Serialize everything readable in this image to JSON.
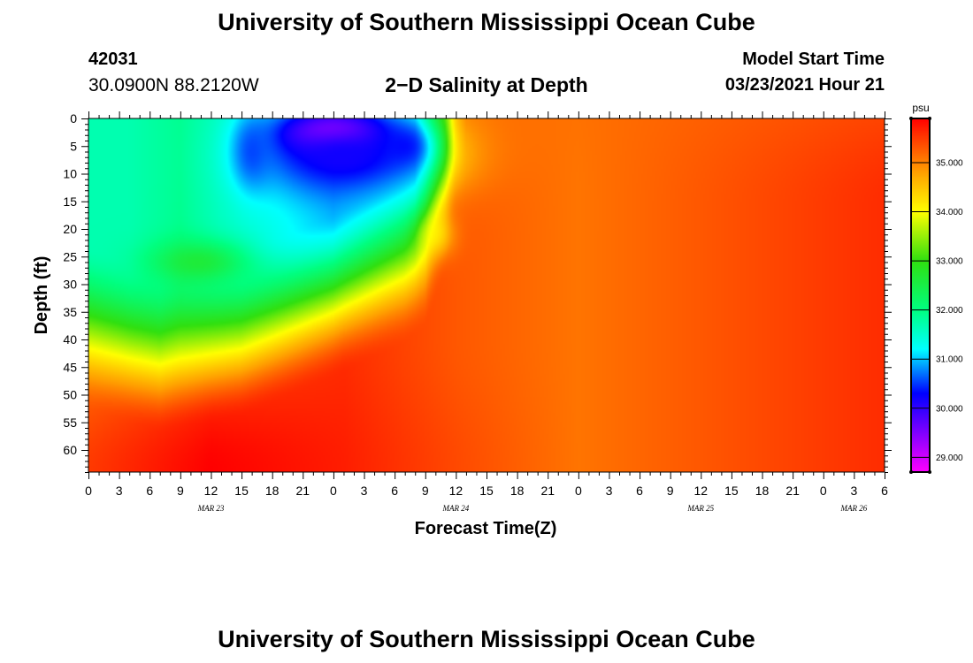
{
  "header": {
    "title": "University of Southern Mississippi Ocean Cube",
    "station_id": "42031",
    "station_coords": "30.0900N 88.2120W",
    "model_start_label": "Model Start Time",
    "model_start_value": "03/23/2021 Hour 21"
  },
  "footer": {
    "title": "University of Southern Mississippi Ocean Cube"
  },
  "chart_data": {
    "type": "heatmap",
    "title": "2−D Salinity at Depth",
    "xlabel": "Forecast Time(Z)",
    "ylabel": "Depth (ft)",
    "colorbar_unit": "psu",
    "x_tick_labels": [
      "0",
      "3",
      "6",
      "9",
      "12",
      "15",
      "18",
      "21",
      "0",
      "3",
      "6",
      "9",
      "12",
      "15",
      "18",
      "21",
      "0",
      "3",
      "6",
      "9",
      "12",
      "15",
      "18",
      "21",
      "0",
      "3",
      "6"
    ],
    "x_hours": [
      0,
      78
    ],
    "date_labels": [
      {
        "label": "MAR 23",
        "hour": 12
      },
      {
        "label": "MAR 24",
        "hour": 36
      },
      {
        "label": "MAR 25",
        "hour": 60
      },
      {
        "label": "MAR 26",
        "hour": 75
      }
    ],
    "y_ticks": [
      0,
      5,
      10,
      15,
      20,
      25,
      30,
      35,
      40,
      45,
      50,
      55,
      60
    ],
    "ylim": [
      0,
      64
    ],
    "colorbar_ticks": [
      29,
      30,
      31,
      32,
      33,
      34,
      35
    ],
    "colorbar_tick_labels": [
      "29.000",
      "30.000",
      "31.000",
      "32.000",
      "33.000",
      "34.000",
      "35.000"
    ],
    "color_range": [
      28.7,
      35.9
    ],
    "color_stops": [
      {
        "value": 28.7,
        "color": "#ff00ff"
      },
      {
        "value": 29.5,
        "color": "#8000ff"
      },
      {
        "value": 30.3,
        "color": "#0000ff"
      },
      {
        "value": 31.2,
        "color": "#00ffff"
      },
      {
        "value": 32.0,
        "color": "#00ff80"
      },
      {
        "value": 33.0,
        "color": "#30e010"
      },
      {
        "value": 34.0,
        "color": "#ffff00"
      },
      {
        "value": 34.8,
        "color": "#ffa000"
      },
      {
        "value": 35.9,
        "color": "#ff0000"
      }
    ],
    "background_field": {
      "surface": [
        {
          "hour": 0,
          "value": 31.7
        },
        {
          "hour": 4,
          "value": 31.7
        },
        {
          "hour": 9,
          "value": 31.9
        },
        {
          "hour": 13,
          "value": 31.6
        },
        {
          "hour": 24,
          "value": 31.0
        },
        {
          "hour": 32,
          "value": 31.5
        },
        {
          "hour": 35,
          "value": 33.5
        },
        {
          "hour": 36,
          "value": 34.5
        },
        {
          "hour": 37,
          "value": 35.0
        },
        {
          "hour": 42,
          "value": 35.1
        },
        {
          "hour": 60,
          "value": 35.2
        },
        {
          "hour": 78,
          "value": 35.3
        }
      ],
      "halocline_depth": [
        {
          "hour": 0,
          "value": 37
        },
        {
          "hour": 7,
          "value": 41
        },
        {
          "hour": 15,
          "value": 38
        },
        {
          "hour": 24,
          "value": 31
        },
        {
          "hour": 31,
          "value": 25
        },
        {
          "hour": 33,
          "value": 22
        },
        {
          "hour": 35,
          "value": 12
        },
        {
          "hour": 36,
          "value": 4
        },
        {
          "hour": 37,
          "value": 0
        },
        {
          "hour": 78,
          "value": 0
        }
      ],
      "deep_bottom": [
        {
          "hour": 0,
          "value": 35.5
        },
        {
          "hour": 12,
          "value": 35.9
        },
        {
          "hour": 25,
          "value": 35.7
        },
        {
          "hour": 36,
          "value": 35.4
        },
        {
          "hour": 48,
          "value": 35.1
        },
        {
          "hour": 60,
          "value": 35.3
        },
        {
          "hour": 78,
          "value": 35.6
        }
      ],
      "deep_mid": [
        {
          "hour": 0,
          "value": 35.1
        },
        {
          "hour": 12,
          "value": 35.4
        },
        {
          "hour": 25,
          "value": 35.6
        },
        {
          "hour": 36,
          "value": 35.3
        },
        {
          "hour": 48,
          "value": 35.1
        },
        {
          "hour": 60,
          "value": 35.3
        },
        {
          "hour": 78,
          "value": 35.6
        }
      ]
    },
    "features": [
      {
        "name": "fresh-core",
        "hour": 24,
        "depth": 3,
        "hour_radius": 5,
        "depth_radius": 4,
        "value": 28.7,
        "strength": 1.0
      },
      {
        "name": "fresh-lens",
        "hour": 25,
        "depth": 7,
        "hour_radius": 8,
        "depth_radius": 7,
        "value": 30.2,
        "strength": 1.0
      },
      {
        "name": "fresh-lens-east",
        "hour": 31,
        "depth": 5,
        "hour_radius": 2.5,
        "depth_radius": 4,
        "value": 30.3,
        "strength": 0.9
      },
      {
        "name": "fresh-lens-west",
        "hour": 16,
        "depth": 6,
        "hour_radius": 2,
        "depth_radius": 7,
        "value": 30.5,
        "strength": 0.9
      },
      {
        "name": "mid-depth-tongue",
        "hour": 11,
        "depth": 26,
        "hour_radius": 5,
        "depth_radius": 4,
        "value": 33.0,
        "strength": 0.7
      },
      {
        "name": "near-surface-tongue",
        "hour": 34,
        "depth": 21,
        "hour_radius": 1.8,
        "depth_radius": 4,
        "value": 34.0,
        "strength": 0.7
      }
    ]
  }
}
